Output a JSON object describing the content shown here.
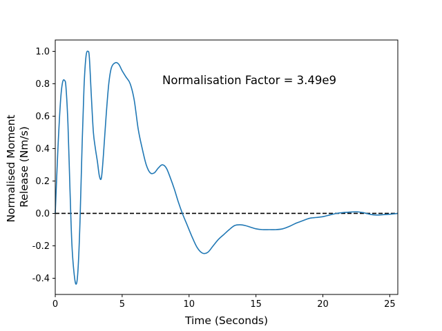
{
  "chart_data": {
    "type": "line",
    "xlabel": "Time (Seconds)",
    "ylabel_lines": [
      "Normalised Moment",
      "Release (Nm/s)"
    ],
    "annotation": "Normalisation Factor = 3.49e9",
    "xlim": [
      0,
      25.6
    ],
    "ylim": [
      -0.5,
      1.07
    ],
    "xticks": [
      0,
      5,
      10,
      15,
      20,
      25
    ],
    "xtick_labels": [
      "0",
      "5",
      "10",
      "15",
      "20",
      "25"
    ],
    "yticks": [
      -0.4,
      -0.2,
      0.0,
      0.2,
      0.4,
      0.6,
      0.8,
      1.0
    ],
    "ytick_labels": [
      "-0.4",
      "-0.2",
      "0.0",
      "0.2",
      "0.4",
      "0.6",
      "0.8",
      "1.0"
    ],
    "grid": false,
    "reference_line": {
      "y": 0,
      "style": "dashed",
      "color": "#000000"
    },
    "series": [
      {
        "color": "#1f77b4",
        "x": [
          0,
          0.2,
          0.4,
          0.55,
          0.7,
          0.8,
          0.95,
          1.1,
          1.25,
          1.45,
          1.6,
          1.72,
          1.85,
          2.0,
          2.15,
          2.3,
          2.45,
          2.55,
          2.7,
          2.85,
          3.0,
          3.15,
          3.3,
          3.45,
          3.6,
          3.8,
          4.0,
          4.2,
          4.5,
          4.75,
          5.0,
          5.3,
          5.6,
          5.9,
          6.2,
          6.5,
          6.8,
          7.1,
          7.4,
          7.7,
          8.0,
          8.3,
          8.6,
          8.9,
          9.2,
          9.5,
          9.8,
          10.2,
          10.6,
          11.0,
          11.4,
          11.8,
          12.2,
          12.6,
          13.0,
          13.4,
          13.8,
          14.2,
          14.6,
          15.0,
          15.5,
          16.0,
          16.5,
          17.0,
          17.5,
          18.0,
          18.5,
          19.0,
          19.5,
          20.0,
          20.5,
          21.0,
          21.5,
          22.0,
          22.5,
          23.0,
          23.5,
          24.0,
          24.5,
          25.0,
          25.6
        ],
        "y": [
          0.0,
          0.4,
          0.7,
          0.81,
          0.82,
          0.78,
          0.55,
          0.15,
          -0.2,
          -0.4,
          -0.43,
          -0.32,
          -0.05,
          0.4,
          0.78,
          0.97,
          1.0,
          0.96,
          0.72,
          0.5,
          0.4,
          0.32,
          0.23,
          0.22,
          0.36,
          0.6,
          0.8,
          0.9,
          0.93,
          0.92,
          0.88,
          0.84,
          0.8,
          0.7,
          0.52,
          0.4,
          0.3,
          0.25,
          0.25,
          0.28,
          0.3,
          0.28,
          0.22,
          0.15,
          0.07,
          0.0,
          -0.06,
          -0.14,
          -0.21,
          -0.245,
          -0.24,
          -0.2,
          -0.16,
          -0.13,
          -0.1,
          -0.075,
          -0.07,
          -0.075,
          -0.085,
          -0.095,
          -0.1,
          -0.1,
          -0.1,
          -0.095,
          -0.08,
          -0.06,
          -0.045,
          -0.03,
          -0.025,
          -0.02,
          -0.01,
          0.0,
          0.005,
          0.008,
          0.01,
          0.005,
          -0.005,
          -0.01,
          -0.008,
          -0.005,
          0.0
        ]
      }
    ]
  }
}
